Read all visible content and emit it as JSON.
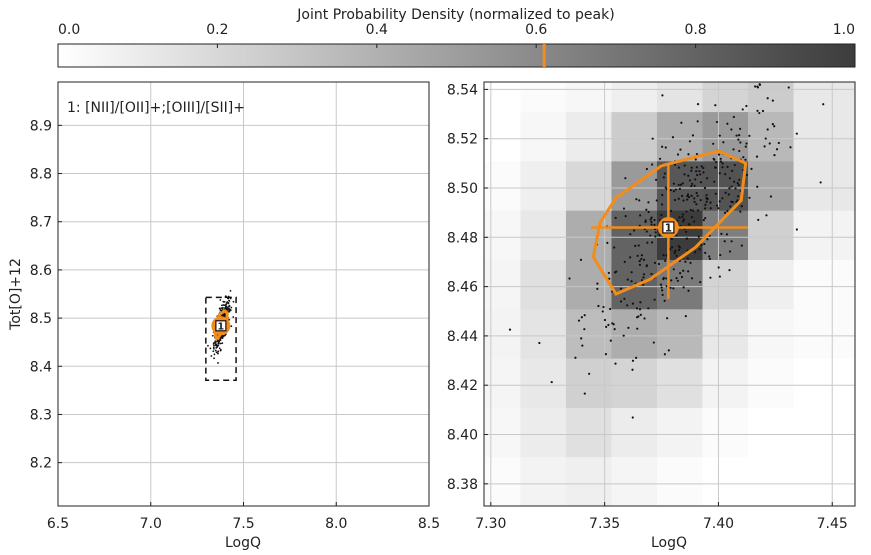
{
  "colorbar": {
    "title": "Joint Probability Density (normalized to peak)",
    "ticks": [
      "0.0",
      "0.2",
      "0.4",
      "0.6",
      "0.8",
      "1.0"
    ],
    "tick_values": [
      0.0,
      0.2,
      0.4,
      0.6,
      0.8,
      1.0
    ],
    "marker_value": 0.61,
    "marker_color": "#f28c1a"
  },
  "colors": {
    "accent": "#f28c1a",
    "grid": "#c8c8c8",
    "points": "#111111"
  },
  "chart_data": [
    {
      "type": "scatter",
      "panel": "overview",
      "annotation": "1: [NII]/[OII]+;[OIII]/[SII]+",
      "xlabel": "LogQ",
      "ylabel": "Tot[O]+12",
      "xlim": [
        6.5,
        8.5
      ],
      "ylim": [
        8.11,
        8.99
      ],
      "x_ticks": [
        "6.5",
        "7.0",
        "7.5",
        "8.0",
        "8.5"
      ],
      "x_tick_values": [
        6.5,
        7.0,
        7.5,
        8.0,
        8.5
      ],
      "y_ticks": [
        "8.2",
        "8.3",
        "8.4",
        "8.5",
        "8.6",
        "8.7",
        "8.8",
        "8.9"
      ],
      "y_tick_values": [
        8.2,
        8.3,
        8.4,
        8.5,
        8.6,
        8.7,
        8.8,
        8.9
      ],
      "grid": true,
      "zoom_box": {
        "x": [
          7.297,
          7.46
        ],
        "y": [
          8.371,
          8.543
        ]
      },
      "best_fit": {
        "x": 7.378,
        "y": 8.484,
        "label": "1"
      }
    },
    {
      "type": "heatmap",
      "panel": "zoom",
      "xlabel": "LogQ",
      "ylabel": "",
      "xlim": [
        7.297,
        7.46
      ],
      "ylim": [
        8.371,
        8.543
      ],
      "x_ticks": [
        "7.30",
        "7.35",
        "7.40",
        "7.45"
      ],
      "x_tick_values": [
        7.3,
        7.35,
        7.4,
        7.45
      ],
      "y_ticks": [
        "8.38",
        "8.40",
        "8.42",
        "8.44",
        "8.46",
        "8.48",
        "8.50",
        "8.52",
        "8.54"
      ],
      "y_tick_values": [
        8.38,
        8.4,
        8.42,
        8.44,
        8.46,
        8.48,
        8.5,
        8.52,
        8.54
      ],
      "grid": true,
      "density": {
        "x_edges": [
          7.297,
          7.313,
          7.333,
          7.353,
          7.373,
          7.393,
          7.413,
          7.433,
          7.46
        ],
        "y_edges": [
          8.371,
          8.391,
          8.411,
          8.431,
          8.451,
          8.471,
          8.491,
          8.511,
          8.531,
          8.543
        ],
        "values": [
          [
            0.02,
            0.06,
            0.08,
            0.05,
            0.02,
            0.0,
            0.0,
            0.0
          ],
          [
            0.04,
            0.1,
            0.16,
            0.1,
            0.06,
            0.02,
            0.0,
            0.0
          ],
          [
            0.05,
            0.12,
            0.24,
            0.22,
            0.16,
            0.06,
            0.02,
            0.0
          ],
          [
            0.06,
            0.14,
            0.34,
            0.42,
            0.36,
            0.12,
            0.04,
            0.02
          ],
          [
            0.05,
            0.16,
            0.42,
            0.8,
            0.68,
            0.22,
            0.08,
            0.02
          ],
          [
            0.04,
            0.12,
            0.42,
            0.8,
            1.0,
            0.66,
            0.24,
            0.06
          ],
          [
            0.02,
            0.08,
            0.2,
            0.52,
            0.86,
            0.88,
            0.44,
            0.12
          ],
          [
            0.0,
            0.04,
            0.1,
            0.26,
            0.42,
            0.52,
            0.36,
            0.12
          ],
          [
            0.0,
            0.02,
            0.04,
            0.08,
            0.14,
            0.22,
            0.26,
            0.12
          ]
        ]
      },
      "contour": {
        "x": [
          7.355,
          7.375,
          7.4,
          7.412,
          7.41,
          7.39,
          7.37,
          7.355,
          7.345,
          7.348,
          7.355
        ],
        "y": [
          8.496,
          8.509,
          8.515,
          8.51,
          8.495,
          8.476,
          8.463,
          8.457,
          8.472,
          8.486,
          8.496
        ]
      },
      "best_fit": {
        "x": 7.378,
        "y": 8.484,
        "label": "1"
      },
      "error_bars": {
        "x": [
          7.344,
          7.413
        ],
        "y": [
          8.455,
          8.51
        ]
      },
      "scatter": {
        "center": [
          7.385,
          8.487
        ],
        "n_points": 420
      }
    }
  ]
}
